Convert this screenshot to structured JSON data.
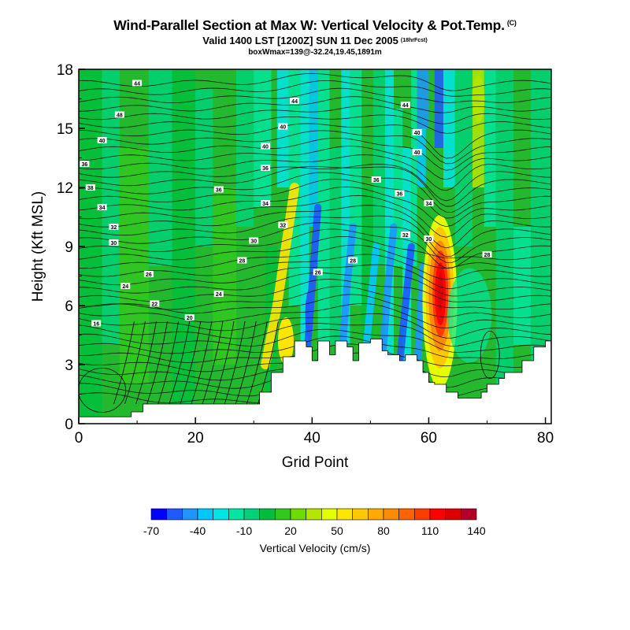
{
  "header": {
    "title": "Wind-Parallel Section at Max W: Vertical Velocity & Pot.Temp.",
    "title_mark": "(C)",
    "subtitle": "Valid 1400 LST [1200Z] SUN 11 Dec 2005",
    "subtitle_note": "(18hrFcst)",
    "subtitle2": "boxWmax=139@-32.24,19.45,1891m"
  },
  "chart_data": {
    "type": "heatmap",
    "xlabel": "Grid Point",
    "ylabel": "Height (Kft MSL)",
    "xlim": [
      0,
      81
    ],
    "ylim": [
      0,
      18
    ],
    "xticks": [
      0,
      20,
      40,
      60,
      80
    ],
    "yticks": [
      0,
      3,
      6,
      9,
      12,
      15,
      18
    ],
    "grid": false,
    "colorbar": {
      "label": "Vertical Velocity (cm/s)",
      "placement": "bottom",
      "tick_labels": [
        "-70",
        "-40",
        "-10",
        "20",
        "50",
        "80",
        "110",
        "140"
      ],
      "tick_values": [
        -70,
        -40,
        -10,
        20,
        50,
        80,
        110,
        140
      ],
      "levels": [
        -70,
        -60,
        -50,
        -40,
        -30,
        -20,
        -10,
        0,
        10,
        20,
        30,
        40,
        50,
        60,
        70,
        80,
        90,
        100,
        110,
        120,
        130,
        140
      ],
      "colors": [
        "#0000ff",
        "#1e5aff",
        "#1e96ff",
        "#00c8ff",
        "#00e6e6",
        "#00e6a0",
        "#00d278",
        "#00be3c",
        "#32c81e",
        "#6edc00",
        "#b4e600",
        "#e6ff00",
        "#ffe600",
        "#ffc800",
        "#ffaa00",
        "#ff8c00",
        "#ff6400",
        "#ff3c00",
        "#ff0000",
        "#dc0000",
        "#b40028"
      ]
    },
    "terrain_kft": [
      [
        0,
        0.35
      ],
      [
        9,
        0.35
      ],
      [
        9,
        0.6
      ],
      [
        11,
        0.6
      ],
      [
        11,
        1.0
      ],
      [
        31,
        1.0
      ],
      [
        31,
        1.6
      ],
      [
        33,
        1.6
      ],
      [
        33,
        2.6
      ],
      [
        35,
        2.6
      ],
      [
        35,
        3.4
      ],
      [
        37,
        3.4
      ],
      [
        37,
        4.2
      ],
      [
        39,
        4.2
      ],
      [
        39,
        3.9
      ],
      [
        40,
        3.9
      ],
      [
        40,
        3.2
      ],
      [
        41,
        3.2
      ],
      [
        41,
        4.2
      ],
      [
        43,
        4.2
      ],
      [
        43,
        3.5
      ],
      [
        44,
        3.5
      ],
      [
        44,
        4.2
      ],
      [
        46,
        4.2
      ],
      [
        46,
        3.9
      ],
      [
        47,
        3.9
      ],
      [
        47,
        3.2
      ],
      [
        48,
        3.2
      ],
      [
        48,
        4.1
      ],
      [
        50,
        4.1
      ],
      [
        50,
        4.3
      ],
      [
        52,
        4.3
      ],
      [
        52,
        3.7
      ],
      [
        53,
        3.7
      ],
      [
        53,
        3.5
      ],
      [
        55,
        3.5
      ],
      [
        55,
        3.2
      ],
      [
        56,
        3.2
      ],
      [
        56,
        3.5
      ],
      [
        58,
        3.5
      ],
      [
        58,
        3.2
      ],
      [
        59,
        3.2
      ],
      [
        59,
        2.6
      ],
      [
        60,
        2.6
      ],
      [
        60,
        2.1
      ],
      [
        61,
        2.1
      ],
      [
        61,
        2.0
      ],
      [
        63,
        2.0
      ],
      [
        63,
        1.6
      ],
      [
        65,
        1.6
      ],
      [
        65,
        1.3
      ],
      [
        69,
        1.3
      ],
      [
        69,
        1.6
      ],
      [
        70,
        1.6
      ],
      [
        70,
        2.0
      ],
      [
        72,
        2.0
      ],
      [
        72,
        2.3
      ],
      [
        73,
        2.3
      ],
      [
        73,
        2.6
      ],
      [
        76,
        2.6
      ],
      [
        76,
        3.2
      ],
      [
        78,
        3.2
      ],
      [
        78,
        3.9
      ],
      [
        80,
        3.9
      ],
      [
        80,
        4.2
      ],
      [
        81,
        4.2
      ]
    ],
    "contour_labels": [
      {
        "x": 10,
        "y": 17.3,
        "text": "44"
      },
      {
        "x": 37,
        "y": 16.4,
        "text": "44"
      },
      {
        "x": 56,
        "y": 16.2,
        "text": "44"
      },
      {
        "x": 7,
        "y": 15.7,
        "text": "48"
      },
      {
        "x": 35,
        "y": 15.1,
        "text": "40"
      },
      {
        "x": 58,
        "y": 14.8,
        "text": "40"
      },
      {
        "x": 4,
        "y": 14.4,
        "text": "40"
      },
      {
        "x": 32,
        "y": 14.1,
        "text": "40"
      },
      {
        "x": 58,
        "y": 13.8,
        "text": "40"
      },
      {
        "x": 1,
        "y": 13.2,
        "text": "36"
      },
      {
        "x": 32,
        "y": 13.0,
        "text": "36"
      },
      {
        "x": 51,
        "y": 12.4,
        "text": "36"
      },
      {
        "x": 2,
        "y": 12.0,
        "text": "38"
      },
      {
        "x": 24,
        "y": 11.9,
        "text": "36"
      },
      {
        "x": 55,
        "y": 11.7,
        "text": "36"
      },
      {
        "x": 4,
        "y": 11.0,
        "text": "34"
      },
      {
        "x": 32,
        "y": 11.2,
        "text": "34"
      },
      {
        "x": 60,
        "y": 11.2,
        "text": "34"
      },
      {
        "x": 6,
        "y": 10.0,
        "text": "32"
      },
      {
        "x": 35,
        "y": 10.1,
        "text": "32"
      },
      {
        "x": 56,
        "y": 9.6,
        "text": "32"
      },
      {
        "x": 6,
        "y": 9.2,
        "text": "30"
      },
      {
        "x": 30,
        "y": 9.3,
        "text": "30"
      },
      {
        "x": 60,
        "y": 9.4,
        "text": "30"
      },
      {
        "x": 28,
        "y": 8.3,
        "text": "28"
      },
      {
        "x": 47,
        "y": 8.3,
        "text": "28"
      },
      {
        "x": 70,
        "y": 8.6,
        "text": "28"
      },
      {
        "x": 12,
        "y": 7.6,
        "text": "26"
      },
      {
        "x": 41,
        "y": 7.7,
        "text": "26"
      },
      {
        "x": 8,
        "y": 7.0,
        "text": "24"
      },
      {
        "x": 24,
        "y": 6.6,
        "text": "24"
      },
      {
        "x": 13,
        "y": 6.1,
        "text": "22"
      },
      {
        "x": 19,
        "y": 5.4,
        "text": "20"
      },
      {
        "x": 3,
        "y": 5.1,
        "text": "16"
      }
    ]
  }
}
